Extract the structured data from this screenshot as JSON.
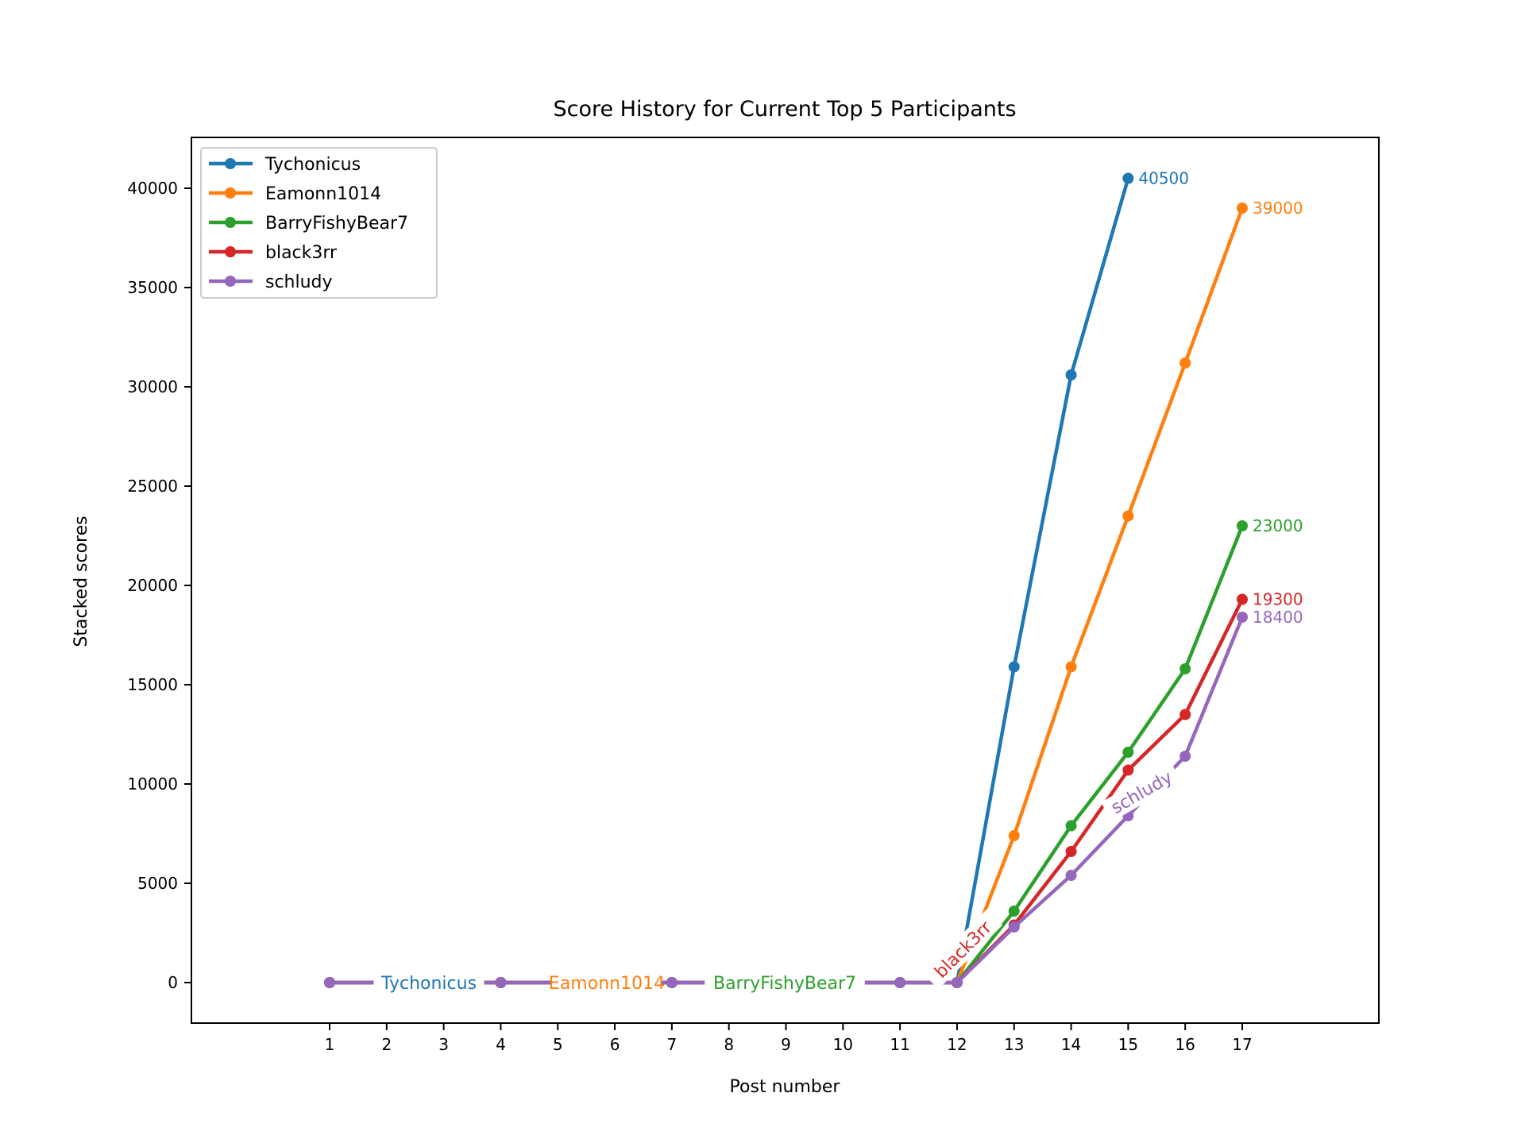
{
  "chart_data": {
    "type": "line",
    "title": "Score History for Current Top 5 Participants",
    "xlabel": "Post number",
    "ylabel": "Stacked scores",
    "x": [
      1,
      2,
      3,
      4,
      5,
      6,
      7,
      8,
      9,
      10,
      11,
      12,
      13,
      14,
      15,
      16,
      17
    ],
    "xticks": [
      "1",
      "2",
      "3",
      "4",
      "5",
      "6",
      "7",
      "8",
      "9",
      "10",
      "11",
      "12",
      "13",
      "14",
      "15",
      "16",
      "17"
    ],
    "yticks": [
      0,
      5000,
      10000,
      15000,
      20000,
      25000,
      30000,
      35000,
      40000
    ],
    "ylim": [
      -2000,
      42500
    ],
    "xlim": [
      -1.4,
      19.4
    ],
    "grid": false,
    "legend_placement": "top-left",
    "series": [
      {
        "name": "Tychonicus",
        "color": "#1f77b4",
        "x": [
          1,
          2,
          3,
          4,
          5,
          6,
          7,
          8,
          9,
          10,
          11,
          12,
          13,
          14,
          15
        ],
        "values": [
          0,
          0,
          0,
          0,
          0,
          0,
          0,
          0,
          0,
          0,
          0,
          0,
          15900,
          30600,
          40500
        ],
        "end_label": "40500"
      },
      {
        "name": "Eamonn1014",
        "color": "#ff7f0e",
        "x": [
          1,
          2,
          3,
          4,
          5,
          6,
          7,
          8,
          9,
          10,
          11,
          12,
          13,
          14,
          15,
          16,
          17
        ],
        "values": [
          0,
          0,
          0,
          0,
          0,
          0,
          0,
          0,
          0,
          0,
          0,
          0,
          7400,
          15900,
          23500,
          31200,
          39000
        ],
        "end_label": "39000"
      },
      {
        "name": "BarryFishyBear7",
        "color": "#2ca02c",
        "x": [
          1,
          2,
          3,
          4,
          5,
          6,
          7,
          8,
          9,
          10,
          11,
          12,
          13,
          14,
          15,
          16,
          17
        ],
        "values": [
          0,
          0,
          0,
          0,
          0,
          0,
          0,
          0,
          0,
          0,
          0,
          0,
          3600,
          7900,
          11600,
          15800,
          23000
        ],
        "end_label": "23000"
      },
      {
        "name": "black3rr",
        "color": "#d62728",
        "x": [
          1,
          2,
          3,
          4,
          5,
          6,
          7,
          8,
          9,
          10,
          11,
          12,
          13,
          14,
          15,
          16,
          17
        ],
        "values": [
          0,
          0,
          0,
          0,
          0,
          0,
          0,
          0,
          0,
          0,
          0,
          0,
          2900,
          6600,
          10700,
          13500,
          19300
        ],
        "end_label": "19300"
      },
      {
        "name": "schludy",
        "color": "#9467bd",
        "x": [
          1,
          2,
          3,
          4,
          5,
          6,
          7,
          8,
          9,
          10,
          11,
          12,
          13,
          14,
          15,
          16,
          17
        ],
        "values": [
          0,
          0,
          0,
          0,
          0,
          0,
          0,
          0,
          0,
          0,
          0,
          0,
          2800,
          5400,
          8400,
          11400,
          18400
        ],
        "end_label": "18400"
      }
    ]
  }
}
